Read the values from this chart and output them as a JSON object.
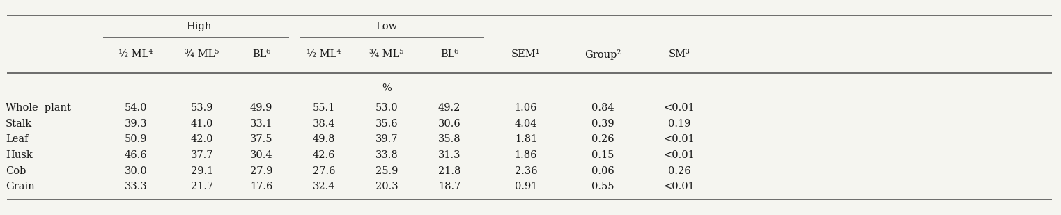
{
  "col_headers_high": "High",
  "col_headers_low": "Low",
  "col_headers_row2": [
    "½ ML⁴",
    "¾ ML⁵",
    "BL⁶",
    "½ ML⁴",
    "¾ ML⁵",
    "BL⁶",
    "SEM¹",
    "Group²",
    "SM³"
  ],
  "percent_label": "%",
  "row_labels": [
    "Whole  plant",
    "Stalk",
    "Leaf",
    "Husk",
    "Cob",
    "Grain"
  ],
  "rows": [
    [
      "54.0",
      "53.9",
      "49.9",
      "55.1",
      "53.0",
      "49.2",
      "1.06",
      "0.84",
      "<0.01"
    ],
    [
      "39.3",
      "41.0",
      "33.1",
      "38.4",
      "35.6",
      "30.6",
      "4.04",
      "0.39",
      "0.19"
    ],
    [
      "50.9",
      "42.0",
      "37.5",
      "49.8",
      "39.7",
      "35.8",
      "1.81",
      "0.26",
      "<0.01"
    ],
    [
      "46.6",
      "37.7",
      "30.4",
      "42.6",
      "33.8",
      "31.3",
      "1.86",
      "0.15",
      "<0.01"
    ],
    [
      "30.0",
      "29.1",
      "27.9",
      "27.6",
      "25.9",
      "21.8",
      "2.36",
      "0.06",
      "0.26"
    ],
    [
      "33.3",
      "21.7",
      "17.6",
      "32.4",
      "20.3",
      "18.7",
      "0.91",
      "0.55",
      "<0.01"
    ]
  ],
  "text_color": "#1a1a1a",
  "line_color": "#555555",
  "bg_color": "#f5f5f0",
  "font_size": 10.5,
  "label_font_size": 10.5
}
